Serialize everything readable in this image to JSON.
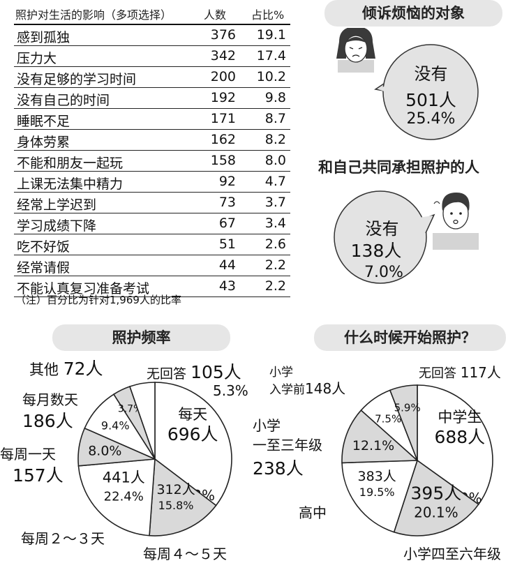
{
  "table": {
    "headers": {
      "item": "照护对生活的影响（多项选择）",
      "count": "人数",
      "pct": "占比%"
    },
    "rows": [
      {
        "item": "感到孤独",
        "count": "376",
        "pct": "19.1"
      },
      {
        "item": "压力大",
        "count": "342",
        "pct": "17.4"
      },
      {
        "item": "没有足够的学习时间",
        "count": "200",
        "pct": "10.2"
      },
      {
        "item": "没有自己的时间",
        "count": "192",
        "pct": "9.8"
      },
      {
        "item": "睡眠不足",
        "count": "171",
        "pct": "8.7"
      },
      {
        "item": "身体劳累",
        "count": "162",
        "pct": "8.2"
      },
      {
        "item": "不能和朋友一起玩",
        "count": "158",
        "pct": "8.0"
      },
      {
        "item": "上课无法集中精力",
        "count": "92",
        "pct": "4.7"
      },
      {
        "item": "经常上学迟到",
        "count": "73",
        "pct": "3.7"
      },
      {
        "item": "学习成绩下降",
        "count": "67",
        "pct": "3.4"
      },
      {
        "item": "吃不好饭",
        "count": "51",
        "pct": "2.6"
      },
      {
        "item": "经常请假",
        "count": "44",
        "pct": "2.2"
      },
      {
        "item": "不能认真复习准备考试",
        "count": "43",
        "pct": "2.2"
      }
    ],
    "note": "（注）百分比为针对1,969人的比率"
  },
  "confide": {
    "title": "倾诉烦恼的对象",
    "answer": "没有",
    "count": "501人",
    "pct": "25.4%"
  },
  "share": {
    "title": "和自己共同承担照护的人",
    "answer": "没有",
    "count": "138人",
    "pct": "7.0%"
  },
  "chart_data": [
    {
      "type": "pie",
      "title": "照护频率",
      "slices": [
        {
          "label": "每天",
          "count": "696人",
          "pct": "35.3%",
          "value": 35.3,
          "fill": "#ffffff"
        },
        {
          "label": "每周４～５天",
          "count": "312人",
          "pct": "15.8%",
          "value": 15.8,
          "fill": "#d9d9d9"
        },
        {
          "label": "每周２～３天",
          "count": "441人",
          "pct": "22.4%",
          "value": 22.4,
          "fill": "#ffffff"
        },
        {
          "label": "每周一天",
          "count": "157人",
          "pct": "8.0%",
          "value": 8.0,
          "fill": "#d9d9d9"
        },
        {
          "label": "每月数天",
          "count": "186人",
          "pct": "9.4%",
          "value": 9.4,
          "fill": "#ffffff"
        },
        {
          "label": "其他",
          "count": "72人",
          "pct": "3.7%",
          "value": 3.7,
          "fill": "#d9d9d9"
        },
        {
          "label": "无回答",
          "count": "105人",
          "pct": "5.3%",
          "value": 5.3,
          "fill": "#ffffff"
        }
      ]
    },
    {
      "type": "pie",
      "title": "什么时候开始照护？",
      "slices": [
        {
          "label": "中学生",
          "count": "688人",
          "pct": "34.9%",
          "value": 34.9,
          "fill": "#ffffff"
        },
        {
          "label": "小学四至六年级",
          "count": "395人",
          "pct": "20.1%",
          "value": 20.1,
          "fill": "#d9d9d9"
        },
        {
          "label": "高中",
          "count": "383人",
          "pct": "19.5%",
          "value": 19.5,
          "fill": "#ffffff"
        },
        {
          "label": "小学一至三年级",
          "count": "238人",
          "pct": "12.1%",
          "value": 12.1,
          "fill": "#d9d9d9"
        },
        {
          "label": "小学入学前",
          "count": "148人",
          "pct": "7.5%",
          "value": 7.5,
          "fill": "#ffffff"
        },
        {
          "label": "无回答",
          "count": "117人",
          "pct": "5.9%",
          "value": 5.9,
          "fill": "#d9d9d9"
        }
      ]
    }
  ],
  "icons": {
    "girl": "sad-girl-icon",
    "boy": "worried-boy-icon"
  },
  "colors": {
    "pill_bg": "#e6e6e6",
    "shade": "#d9d9d9",
    "bubble": "#e3e3e3"
  }
}
